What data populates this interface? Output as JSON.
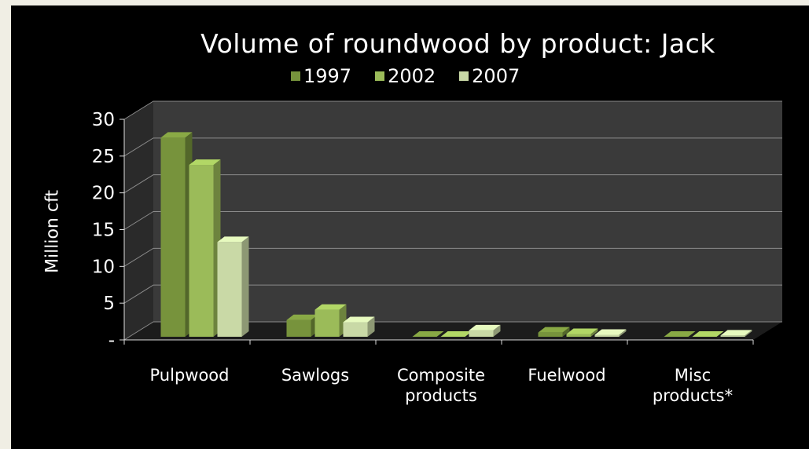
{
  "chart_data": {
    "type": "bar",
    "title": "Volume of roundwood by product:  Jack",
    "ylabel": "Million cft",
    "xlabel": "",
    "ylim": [
      0,
      30
    ],
    "yticks": [
      "-",
      "5",
      "10",
      "15",
      "20",
      "25",
      "30"
    ],
    "categories": [
      [
        "Pulpwood"
      ],
      [
        "Sawlogs"
      ],
      [
        "Composite",
        "products"
      ],
      [
        "Fuelwood"
      ],
      [
        "Misc",
        "products*"
      ]
    ],
    "series": [
      {
        "name": "1997",
        "values": [
          27.5,
          2.7,
          0.3,
          1.0,
          0.1
        ],
        "color": "#77933c"
      },
      {
        "name": "2002",
        "values": [
          23.8,
          4.1,
          0.3,
          0.8,
          0.2
        ],
        "color": "#9bbb59"
      },
      {
        "name": "2007",
        "values": [
          13.3,
          2.4,
          1.3,
          0.7,
          0.6
        ],
        "color": "#c9d9a6"
      }
    ],
    "legend_position": "top",
    "grid": true
  }
}
